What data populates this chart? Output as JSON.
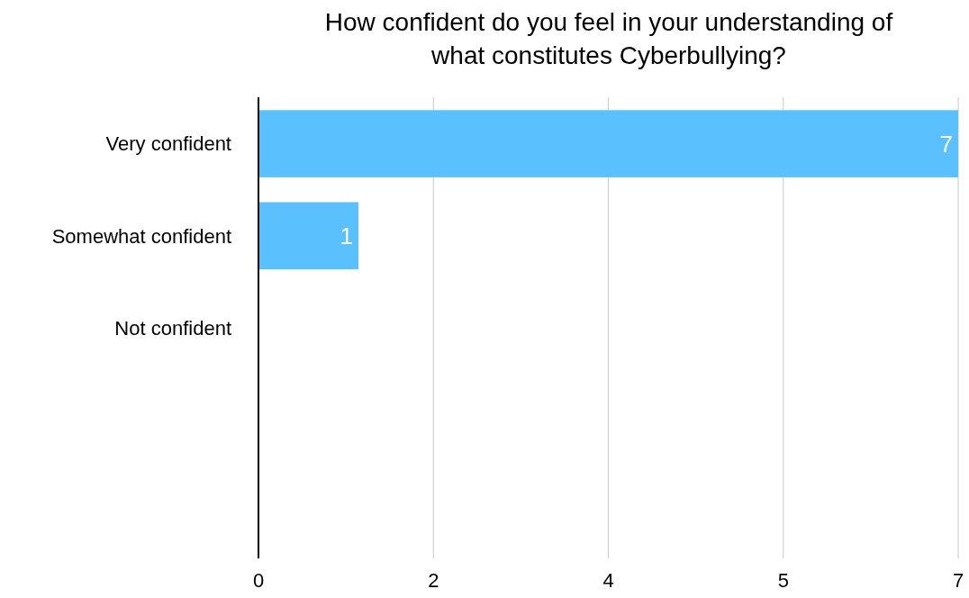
{
  "chart_data": {
    "type": "bar",
    "orientation": "horizontal",
    "title": "How confident do you feel in your understanding of what constitutes Cyberbullying?",
    "categories": [
      "Very confident",
      "Somewhat confident",
      "Not confident",
      null,
      null
    ],
    "values": [
      7,
      1,
      0,
      null,
      null
    ],
    "color": "#5ac1fe",
    "xlim": [
      0,
      7
    ],
    "xticks": [
      0,
      {
        "value": 1.75,
        "label": "2"
      },
      {
        "value": 3.5,
        "label": "4"
      },
      {
        "value": 5.25,
        "label": "5"
      },
      7
    ],
    "value_labels": [
      "7",
      "1",
      null,
      null,
      null
    ],
    "grid": "x"
  }
}
